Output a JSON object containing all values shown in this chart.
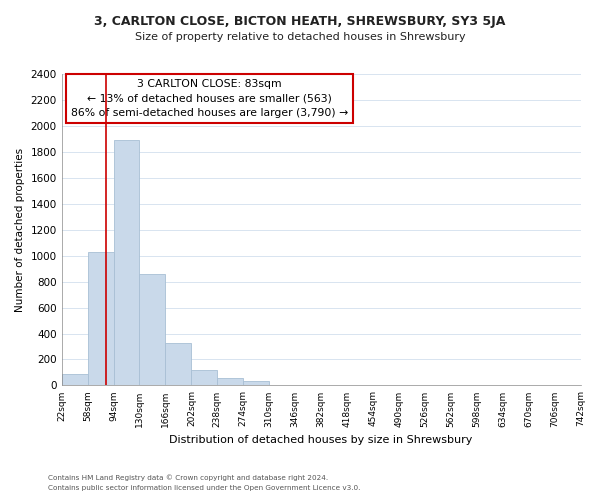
{
  "title_line1": "3, CARLTON CLOSE, BICTON HEATH, SHREWSBURY, SY3 5JA",
  "title_line2": "Size of property relative to detached houses in Shrewsbury",
  "xlabel": "Distribution of detached houses by size in Shrewsbury",
  "ylabel": "Number of detached properties",
  "bin_labels": [
    "22sqm",
    "58sqm",
    "94sqm",
    "130sqm",
    "166sqm",
    "202sqm",
    "238sqm",
    "274sqm",
    "310sqm",
    "346sqm",
    "382sqm",
    "418sqm",
    "454sqm",
    "490sqm",
    "526sqm",
    "562sqm",
    "598sqm",
    "634sqm",
    "670sqm",
    "706sqm",
    "742sqm"
  ],
  "bar_heights": [
    90,
    1030,
    1890,
    860,
    325,
    120,
    55,
    35,
    0,
    0,
    0,
    0,
    0,
    0,
    0,
    0,
    0,
    0,
    0,
    0
  ],
  "bar_color": "#c9d9ea",
  "bar_edge_color": "#a8bfd4",
  "annotation_title": "3 CARLTON CLOSE: 83sqm",
  "annotation_line1": "← 13% of detached houses are smaller (563)",
  "annotation_line2": "86% of semi-detached houses are larger (3,790) →",
  "annotation_box_color": "#ffffff",
  "annotation_box_edge_color": "#cc0000",
  "vertical_line_color": "#cc0000",
  "ylim": [
    0,
    2400
  ],
  "yticks": [
    0,
    200,
    400,
    600,
    800,
    1000,
    1200,
    1400,
    1600,
    1800,
    2000,
    2200,
    2400
  ],
  "footer_line1": "Contains HM Land Registry data © Crown copyright and database right 2024.",
  "footer_line2": "Contains public sector information licensed under the Open Government Licence v3.0.",
  "background_color": "#ffffff",
  "grid_color": "#d8e4f0",
  "vline_x": 1.69
}
